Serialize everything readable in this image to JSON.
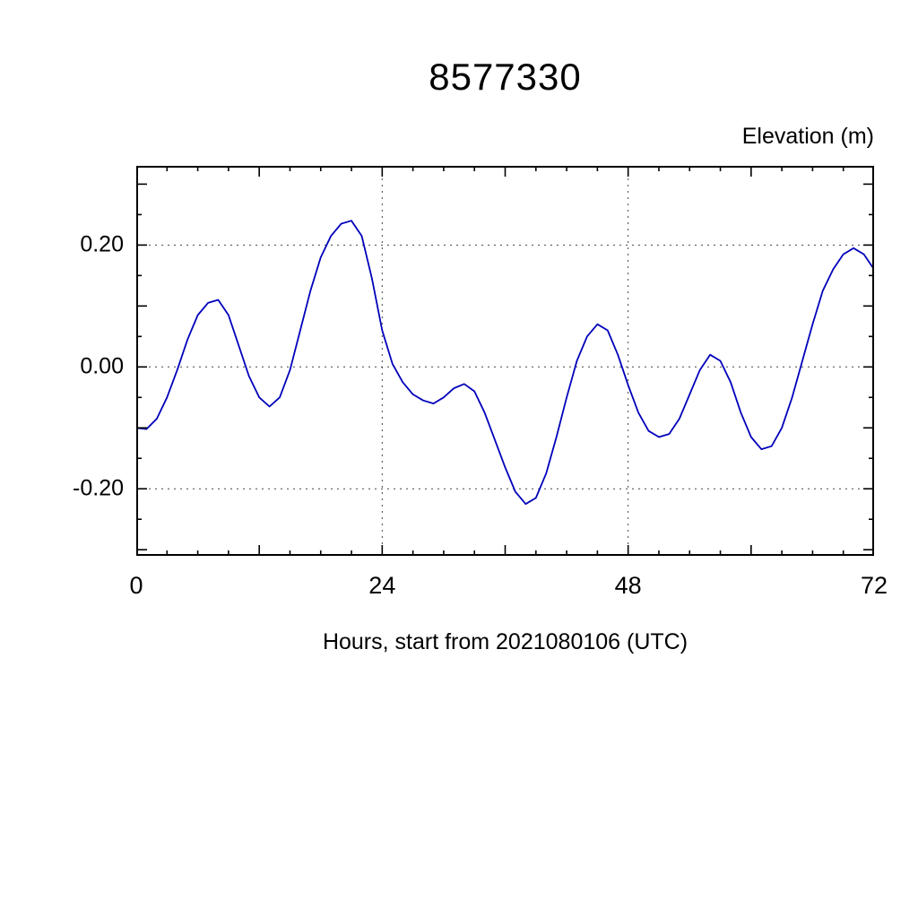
{
  "title": "8577330",
  "y_axis_title": "Elevation (m)",
  "x_axis_title": "Hours, start from 2021080106 (UTC)",
  "chart_data": {
    "type": "line",
    "title": "8577330",
    "xlabel": "Hours, start from 2021080106 (UTC)",
    "ylabel": "Elevation (m)",
    "line_color": "#0000bb",
    "grid_color": "#444444",
    "frame_color": "#000000",
    "xlim": [
      0,
      72
    ],
    "ylim": [
      -0.31,
      0.33
    ],
    "xticks_major": [
      0,
      24,
      48,
      72
    ],
    "xtick_labels": [
      "0",
      "24",
      "48",
      "72"
    ],
    "xtick_minor_step": 3,
    "xtick_medium_step": 12,
    "yticks_major": [
      -0.2,
      0.0,
      0.2
    ],
    "ytick_labels": [
      "-0.20",
      "0.00",
      "0.20"
    ],
    "ytick_minor_step": 0.05,
    "ytick_medium_step": 0.1,
    "grid_x": [
      24,
      48
    ],
    "grid_y": [
      -0.2,
      0.0,
      0.2
    ],
    "x": [
      0,
      1,
      2,
      3,
      4,
      5,
      6,
      7,
      8,
      9,
      10,
      11,
      12,
      13,
      14,
      15,
      16,
      17,
      18,
      19,
      20,
      21,
      22,
      23,
      24,
      25,
      26,
      27,
      28,
      29,
      30,
      31,
      32,
      33,
      34,
      35,
      36,
      37,
      38,
      39,
      40,
      41,
      42,
      43,
      44,
      45,
      46,
      47,
      48,
      49,
      50,
      51,
      52,
      53,
      54,
      55,
      56,
      57,
      58,
      59,
      60,
      61,
      62,
      63,
      64,
      65,
      66,
      67,
      68,
      69,
      70,
      71,
      72
    ],
    "values": [
      -0.1,
      -0.102,
      -0.085,
      -0.05,
      -0.005,
      0.045,
      0.085,
      0.105,
      0.11,
      0.085,
      0.035,
      -0.015,
      -0.05,
      -0.065,
      -0.05,
      -0.005,
      0.06,
      0.125,
      0.18,
      0.215,
      0.235,
      0.24,
      0.215,
      0.145,
      0.06,
      0.005,
      -0.025,
      -0.045,
      -0.055,
      -0.06,
      -0.05,
      -0.035,
      -0.028,
      -0.04,
      -0.075,
      -0.12,
      -0.165,
      -0.205,
      -0.225,
      -0.215,
      -0.175,
      -0.115,
      -0.05,
      0.01,
      0.05,
      0.07,
      0.06,
      0.02,
      -0.03,
      -0.075,
      -0.105,
      -0.115,
      -0.11,
      -0.085,
      -0.045,
      -0.005,
      0.02,
      0.01,
      -0.025,
      -0.075,
      -0.115,
      -0.135,
      -0.13,
      -0.1,
      -0.05,
      0.01,
      0.07,
      0.125,
      0.16,
      0.185,
      0.195,
      0.185,
      0.16
    ]
  }
}
